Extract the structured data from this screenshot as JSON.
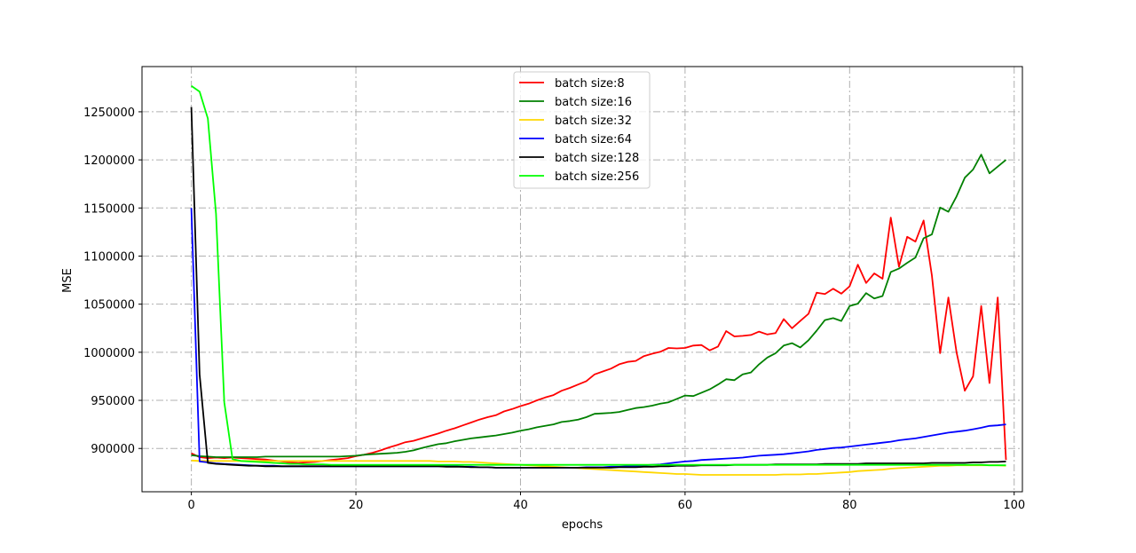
{
  "chart_data": {
    "type": "line",
    "title": "",
    "xlabel": "epochs",
    "ylabel": "MSE",
    "xlim": [
      -6,
      101
    ],
    "ylim": [
      855000,
      1297000
    ],
    "xticks": [
      0,
      20,
      40,
      60,
      80,
      100
    ],
    "yticks": [
      900000,
      950000,
      1000000,
      1050000,
      1100000,
      1150000,
      1200000,
      1250000
    ],
    "grid": true,
    "legend_position": "top-center",
    "series": [
      {
        "name": "batch size:8",
        "color": "#ff0000",
        "values": [
          895000,
          891000,
          890000,
          890500,
          890000,
          890500,
          890000,
          889500,
          889000,
          888500,
          887500,
          886500,
          885500,
          885000,
          885500,
          886000,
          887000,
          888000,
          889000,
          890000,
          892000,
          893500,
          895500,
          898000,
          901000,
          903500,
          906500,
          908000,
          910500,
          913000,
          915500,
          918500,
          921000,
          924000,
          927000,
          930000,
          932500,
          934500,
          938500,
          941000,
          944000,
          946500,
          950000,
          953000,
          955500,
          960000,
          963000,
          966500,
          970000,
          977000,
          980000,
          983000,
          987500,
          990000,
          991000,
          996000,
          998500,
          1000500,
          1004500,
          1004000,
          1004500,
          1007000,
          1007500,
          1002000,
          1006000,
          1022000,
          1016500,
          1017000,
          1018000,
          1021500,
          1018500,
          1020000,
          1034500,
          1025000,
          1032500,
          1040000,
          1062000,
          1060500,
          1066000,
          1061000,
          1068500,
          1091000,
          1072000,
          1082000,
          1076500,
          1140000,
          1089000,
          1120000,
          1115000,
          1137000,
          1080000,
          999000,
          1057000,
          1000000,
          960000,
          975000,
          1048000,
          968000,
          1057000,
          888000
        ]
      },
      {
        "name": "batch size:16",
        "color": "#008000",
        "values": [
          893000,
          892000,
          891500,
          891000,
          891000,
          891000,
          891000,
          891000,
          891000,
          891500,
          891500,
          891500,
          891500,
          891500,
          891500,
          891500,
          891500,
          891500,
          891500,
          892000,
          892500,
          893500,
          894000,
          894500,
          895000,
          895500,
          896500,
          898000,
          900500,
          902500,
          904500,
          905500,
          907500,
          909000,
          910500,
          911500,
          912500,
          913500,
          915000,
          916500,
          918500,
          920000,
          922000,
          923500,
          925000,
          927500,
          928500,
          930000,
          932500,
          936000,
          936500,
          937000,
          938000,
          940000,
          942000,
          943000,
          944500,
          946500,
          948000,
          951500,
          955000,
          954500,
          958000,
          961500,
          966500,
          972000,
          971000,
          977000,
          979000,
          987500,
          994500,
          999000,
          1007000,
          1009500,
          1005000,
          1012500,
          1022500,
          1033500,
          1035500,
          1032500,
          1048000,
          1050500,
          1061500,
          1056000,
          1058500,
          1083500,
          1087000,
          1093000,
          1098500,
          1118500,
          1122500,
          1150500,
          1146000,
          1162000,
          1181500,
          1190000,
          1205500,
          1186000,
          1193000,
          1200000
        ]
      },
      {
        "name": "batch size:32",
        "color": "#ffd700",
        "values": [
          887500,
          887000,
          887000,
          887000,
          887000,
          887000,
          887000,
          887000,
          887000,
          887000,
          887000,
          887000,
          887000,
          887000,
          887000,
          887000,
          887000,
          887000,
          887000,
          887000,
          887000,
          887000,
          887000,
          887000,
          887000,
          887000,
          887000,
          887000,
          887000,
          887000,
          886500,
          886500,
          886500,
          886000,
          886000,
          885500,
          885000,
          884500,
          884000,
          883500,
          883000,
          882500,
          882000,
          881500,
          881000,
          880500,
          880000,
          879500,
          879000,
          878500,
          878000,
          877500,
          877000,
          876500,
          876000,
          875500,
          875000,
          874500,
          874000,
          873500,
          873500,
          873000,
          872500,
          872500,
          872500,
          872500,
          872500,
          872500,
          872500,
          872500,
          872500,
          872500,
          873000,
          873000,
          873000,
          873500,
          873500,
          874000,
          874500,
          875000,
          875500,
          876500,
          877000,
          877500,
          878000,
          879000,
          879500,
          880000,
          880500,
          881000,
          881500,
          882000,
          882000,
          882500,
          882500,
          882500,
          882500,
          882500,
          882500,
          882000
        ]
      },
      {
        "name": "batch size:64",
        "color": "#0000ff",
        "values": [
          1150000,
          886500,
          885500,
          884500,
          884000,
          883500,
          883000,
          882500,
          882000,
          882000,
          882000,
          881500,
          881500,
          881500,
          881500,
          881500,
          881500,
          881500,
          881500,
          881500,
          881500,
          881500,
          881500,
          881500,
          881500,
          881500,
          881500,
          881500,
          881500,
          881500,
          881500,
          881500,
          881500,
          881000,
          881000,
          880500,
          880500,
          880000,
          880000,
          880000,
          880000,
          880000,
          880000,
          880000,
          880000,
          880000,
          880000,
          880000,
          880500,
          880500,
          880500,
          881000,
          881000,
          881500,
          882000,
          882500,
          883000,
          883500,
          884500,
          885500,
          886500,
          887000,
          888000,
          888500,
          889000,
          889500,
          890000,
          890500,
          891500,
          892500,
          893000,
          893500,
          894000,
          895000,
          896000,
          897000,
          898500,
          899500,
          900500,
          901000,
          902000,
          903000,
          904000,
          905000,
          906000,
          907000,
          908500,
          909500,
          910500,
          912000,
          913500,
          915000,
          916500,
          917500,
          918500,
          920000,
          921500,
          923500,
          924000,
          925000
        ]
      },
      {
        "name": "batch size:128",
        "color": "#000000",
        "values": [
          1255000,
          977000,
          885000,
          884000,
          883500,
          883000,
          882500,
          882000,
          882000,
          881500,
          881500,
          881500,
          881500,
          881500,
          881500,
          881500,
          881500,
          881500,
          881500,
          881500,
          881500,
          881500,
          881500,
          881500,
          881500,
          881500,
          881500,
          881500,
          881500,
          881500,
          881500,
          881000,
          881000,
          881000,
          880500,
          880500,
          880500,
          880000,
          880000,
          880000,
          880000,
          880000,
          880000,
          880000,
          880000,
          880000,
          880000,
          880000,
          880000,
          880000,
          880000,
          880000,
          880500,
          880500,
          880500,
          881000,
          881000,
          881500,
          881500,
          882000,
          882000,
          882000,
          882500,
          882500,
          882500,
          882500,
          883000,
          883000,
          883000,
          883000,
          883000,
          883500,
          883500,
          883500,
          883500,
          883500,
          883500,
          884000,
          884000,
          884000,
          884000,
          884000,
          884500,
          884500,
          884500,
          884500,
          884500,
          884500,
          884500,
          884500,
          885000,
          885000,
          885000,
          885000,
          885000,
          885500,
          885500,
          886000,
          886000,
          886500
        ]
      },
      {
        "name": "batch size:256",
        "color": "#00ff00",
        "values": [
          1277000,
          1271000,
          1243000,
          1144000,
          948000,
          889000,
          887000,
          886500,
          886000,
          885500,
          885000,
          884500,
          884000,
          884000,
          883500,
          883500,
          883500,
          883000,
          883000,
          883000,
          883000,
          883000,
          883000,
          883000,
          883000,
          883000,
          883000,
          883000,
          883000,
          883000,
          883000,
          883000,
          883000,
          883000,
          883000,
          883000,
          883000,
          883000,
          883000,
          883000,
          883000,
          883000,
          883000,
          883000,
          883000,
          883000,
          883000,
          883000,
          883000,
          883000,
          883000,
          883000,
          883000,
          883000,
          883000,
          883000,
          883000,
          883000,
          883000,
          883000,
          883000,
          883000,
          883000,
          883000,
          883000,
          883000,
          883000,
          883000,
          883000,
          883000,
          883000,
          883000,
          883000,
          883000,
          883000,
          883000,
          883000,
          883000,
          883000,
          883000,
          883000,
          883000,
          883000,
          883000,
          883000,
          883000,
          883000,
          883000,
          883000,
          883000,
          883000,
          883000,
          883000,
          883000,
          883000,
          883000,
          883000,
          882500,
          882500,
          882500
        ]
      }
    ]
  }
}
